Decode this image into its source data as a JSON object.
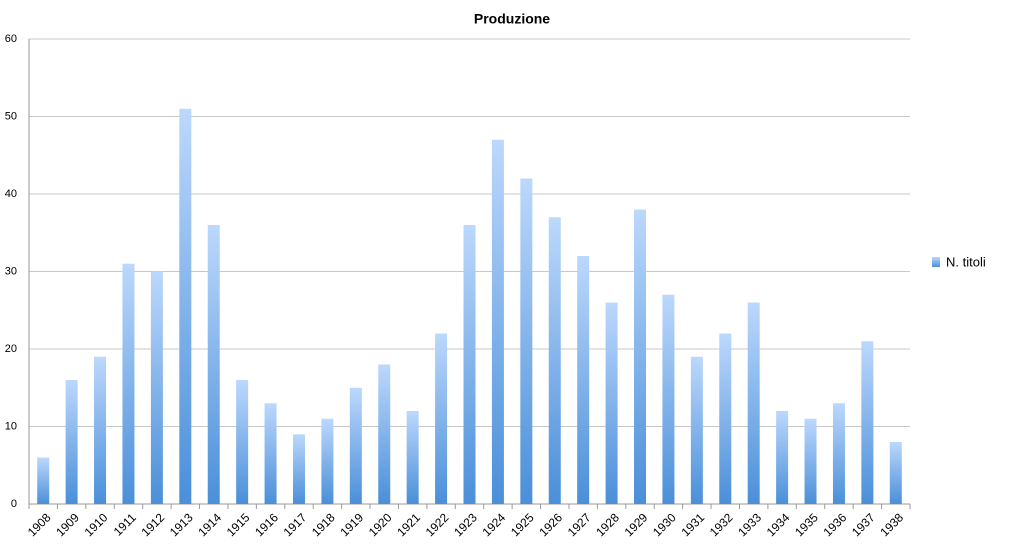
{
  "chart_data": {
    "type": "bar",
    "title": "Produzione",
    "categories": [
      "1908",
      "1909",
      "1910",
      "1911",
      "1912",
      "1913",
      "1914",
      "1915",
      "1916",
      "1917",
      "1918",
      "1919",
      "1920",
      "1921",
      "1922",
      "1923",
      "1924",
      "1925",
      "1926",
      "1927",
      "1928",
      "1929",
      "1930",
      "1931",
      "1932",
      "1933",
      "1934",
      "1935",
      "1936",
      "1937",
      "1938"
    ],
    "series": [
      {
        "name": "N. titoli",
        "color": "#4a8fd9",
        "values": [
          6,
          16,
          19,
          31,
          30,
          51,
          36,
          16,
          13,
          9,
          11,
          15,
          18,
          12,
          22,
          36,
          47,
          42,
          37,
          32,
          26,
          38,
          27,
          19,
          22,
          26,
          12,
          11,
          13,
          21,
          8
        ]
      }
    ],
    "ylim": [
      0,
      60
    ],
    "yticks": [
      0,
      10,
      20,
      30,
      40,
      50,
      60
    ],
    "grid": true,
    "legend": "right"
  }
}
